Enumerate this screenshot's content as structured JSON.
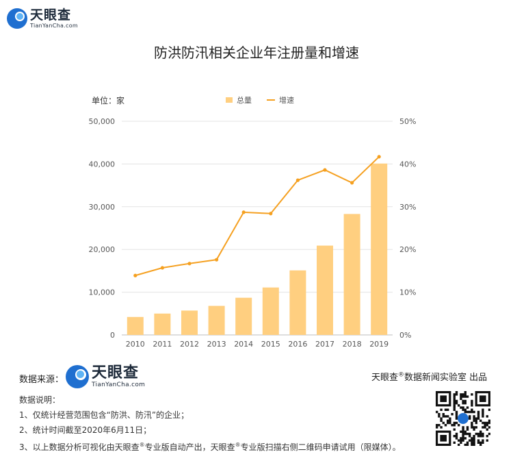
{
  "brand": {
    "name": "天眼查",
    "sub": "TianYanCha.com"
  },
  "title": "防洪防汛相关企业年注册量和增速",
  "unit_label": "单位：家",
  "legend": {
    "bar": "总量",
    "line": "增速"
  },
  "chart_data": {
    "type": "bar",
    "categories": [
      "2010",
      "2011",
      "2012",
      "2013",
      "2014",
      "2015",
      "2016",
      "2017",
      "2018",
      "2019"
    ],
    "series": [
      {
        "name": "总量",
        "type": "bar",
        "axis": "left",
        "values": [
          4200,
          5000,
          5700,
          6800,
          8700,
          11100,
          15100,
          20900,
          28300,
          40100
        ]
      },
      {
        "name": "增速",
        "type": "line",
        "axis": "right",
        "values": [
          0.139,
          0.157,
          0.167,
          0.176,
          0.287,
          0.284,
          0.362,
          0.386,
          0.356,
          0.417
        ]
      }
    ],
    "y_left": {
      "min": 0,
      "max": 50000,
      "ticks": [
        "0",
        "10,000",
        "20,000",
        "30,000",
        "40,000",
        "50,000"
      ]
    },
    "y_right": {
      "min": 0,
      "max": 0.5,
      "ticks": [
        "0%",
        "10%",
        "20%",
        "30%",
        "40%",
        "50%"
      ]
    },
    "colors": {
      "bar": "#ffcf80",
      "line": "#f5a020"
    },
    "grid": true,
    "legend_position": "top-center"
  },
  "footer": {
    "source_label": "数据来源：",
    "credit_name": "天眼查",
    "credit_mark": "®",
    "credit_rest": "数据新闻实验室 出品",
    "notes_title": "数据说明：",
    "note1": "1、仅统计经营范围包含“防洪、防汛”的企业；",
    "note2": "2、统计时间截至2020年6月11日；",
    "note3_a": "3、以上数据分析可视化由天眼查",
    "note3_mark": "®",
    "note3_b": "专业版自动产出，天眼查",
    "note3_mark2": "®",
    "note3_c": "专业版扫描右侧二维码申请试用（限媒体）。"
  }
}
